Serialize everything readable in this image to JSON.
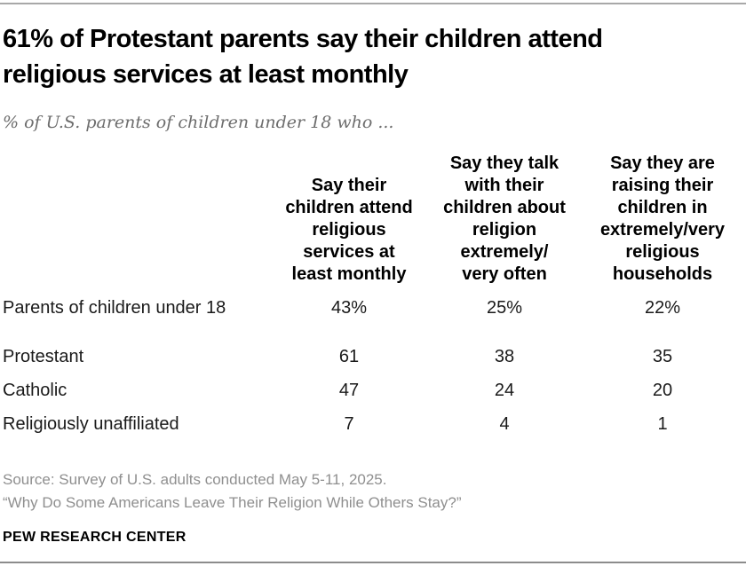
{
  "display": {
    "title_lines": [
      "61% of Protestant parents say their children attend",
      "religious services at least monthly"
    ],
    "subtitle": "% of U.S. parents of children under 18 who ...",
    "column_headers": [
      "Say their\nchildren attend\nreligious\nservices at\nleast monthly",
      "Say they talk\nwith their\nchildren about\nreligion\nextremely/\nvery often",
      "Say they are\nraising their\nchildren in\nextremely/very\nreligious\nhouseholds"
    ],
    "rows": [
      {
        "label": "Parents of children under 18",
        "values": [
          "43%",
          "25%",
          "22%"
        ]
      },
      {
        "label": "Protestant",
        "values": [
          "61",
          "38",
          "35"
        ]
      },
      {
        "label": "Catholic",
        "values": [
          "47",
          "24",
          "20"
        ]
      },
      {
        "label": "Religiously unaffiliated",
        "values": [
          "7",
          "4",
          "1"
        ]
      }
    ],
    "source_lines": [
      "Source: Survey of U.S. adults conducted May 5-11, 2025.",
      "“Why Do Some Americans Leave Their Religion While Others Stay?”"
    ],
    "brand": "PEW RESEARCH CENTER"
  },
  "colors": {
    "title": "#000000",
    "subtitle": "#6d6d6d",
    "body_text": "#1a1a1a",
    "source_text": "#8f8f8f",
    "rule_top": "#a8a8a8",
    "rule_bottom": "#8c8c8c"
  },
  "chart_data": {
    "type": "table",
    "title": "61% of Protestant parents say their children attend religious services at least monthly",
    "subtitle": "% of U.S. parents of children under 18 who ...",
    "columns": [
      "Say their children attend religious services at least monthly",
      "Say they talk with their children about religion extremely/very often",
      "Say they are raising their children in extremely/very religious households"
    ],
    "rows": [
      {
        "group": "Parents of children under 18",
        "values": [
          43,
          25,
          22
        ],
        "unit": "%"
      },
      {
        "group": "Protestant",
        "values": [
          61,
          38,
          35
        ],
        "unit": "%"
      },
      {
        "group": "Catholic",
        "values": [
          47,
          24,
          20
        ],
        "unit": "%"
      },
      {
        "group": "Religiously unaffiliated",
        "values": [
          7,
          4,
          1
        ],
        "unit": "%"
      }
    ],
    "source": "Source: Survey of U.S. adults conducted May 5-11, 2025.",
    "report": "“Why Do Some Americans Leave Their Religion While Others Stay?”",
    "attribution": "PEW RESEARCH CENTER"
  }
}
